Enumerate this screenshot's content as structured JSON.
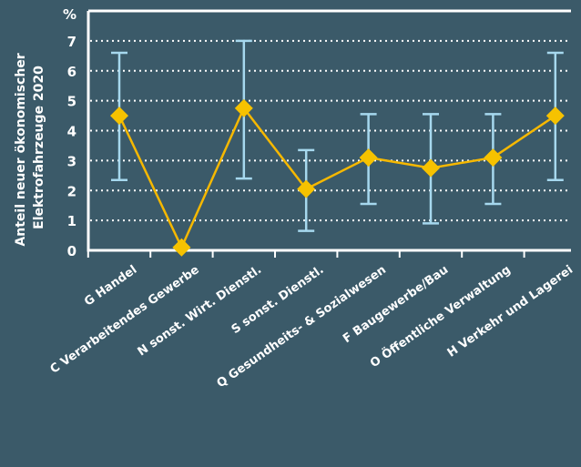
{
  "chart_data": {
    "type": "line",
    "unit_label": "%",
    "ylabel_lines": [
      "Anteil neuer ökonomischer",
      "Elektrofahrzeuge 2020"
    ],
    "xlabel": "",
    "ylim": [
      0,
      8
    ],
    "yticks": [
      0,
      1,
      2,
      3,
      4,
      5,
      6,
      7
    ],
    "grid": true,
    "categories": [
      "G Handel",
      "C Verarbeitendes Gewerbe",
      "N sonst. Wirt. Dienstl.",
      "S sonst. Dienstl.",
      "Q Gesundheits- & Sozialwesen",
      "F Baugewerbe/Bau",
      "O Öffentliche Verwaltung",
      "H Verkehr und Lagerei"
    ],
    "series": [
      {
        "values": [
          4.5,
          0.1,
          4.75,
          2.05,
          3.1,
          2.75,
          3.1,
          4.5
        ],
        "error_low": [
          2.35,
          0.1,
          2.4,
          0.65,
          1.55,
          0.9,
          1.55,
          2.35
        ],
        "error_high": [
          6.6,
          0.1,
          7.0,
          3.35,
          4.55,
          4.55,
          4.55,
          6.6
        ]
      }
    ],
    "colors": {
      "line": "#f6b800",
      "marker": "#f6c200",
      "error_bar": "#a6d8ee",
      "axis": "#ffffff",
      "grid": "#ffffff",
      "background": "#3b5a69"
    }
  }
}
